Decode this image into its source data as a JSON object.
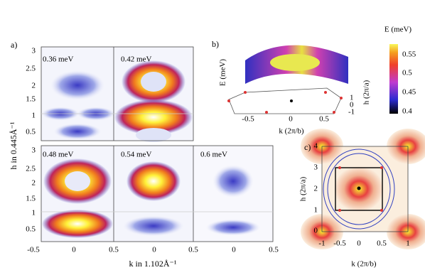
{
  "panel_a": {
    "label": "a)",
    "y_label": "h in 0.445Å⁻¹",
    "x_label": "k in 1.102Å⁻¹",
    "top_y_ticks": [
      "3",
      "2.5",
      "2",
      "1.5",
      "1",
      "0.5"
    ],
    "bottom_y_ticks": [
      "3",
      "2.5",
      "2",
      "1.5",
      "1",
      "0.5"
    ],
    "x_ticks": [
      "-0.5",
      "0",
      "0.5",
      "0",
      "0.5",
      "0",
      "0.5"
    ],
    "maps": [
      "0.36 meV",
      "0.42 meV",
      "0.48 meV",
      "0.54 meV",
      "0.6 meV"
    ]
  },
  "panel_b": {
    "label": "b)",
    "z_label": "E (meV)",
    "x_label": "k (2π/b)",
    "y_label": "h (2π/a)",
    "x_ticks": [
      "-0.5",
      "0",
      "0.5"
    ],
    "y_ticks": [
      "1",
      "0",
      "-1"
    ]
  },
  "colorbar": {
    "title": "E (meV)",
    "ticks": [
      "0.55",
      "0.5",
      "0.45",
      "0.4"
    ]
  },
  "panel_c": {
    "label": "c)",
    "y_label": "h (2π/a)",
    "x_label": "k (2π/b)",
    "y_ticks": [
      "4",
      "3",
      "2",
      "1",
      "0"
    ],
    "x_ticks": [
      "-1",
      "-0.5",
      "0",
      "0.5",
      "1"
    ]
  }
}
